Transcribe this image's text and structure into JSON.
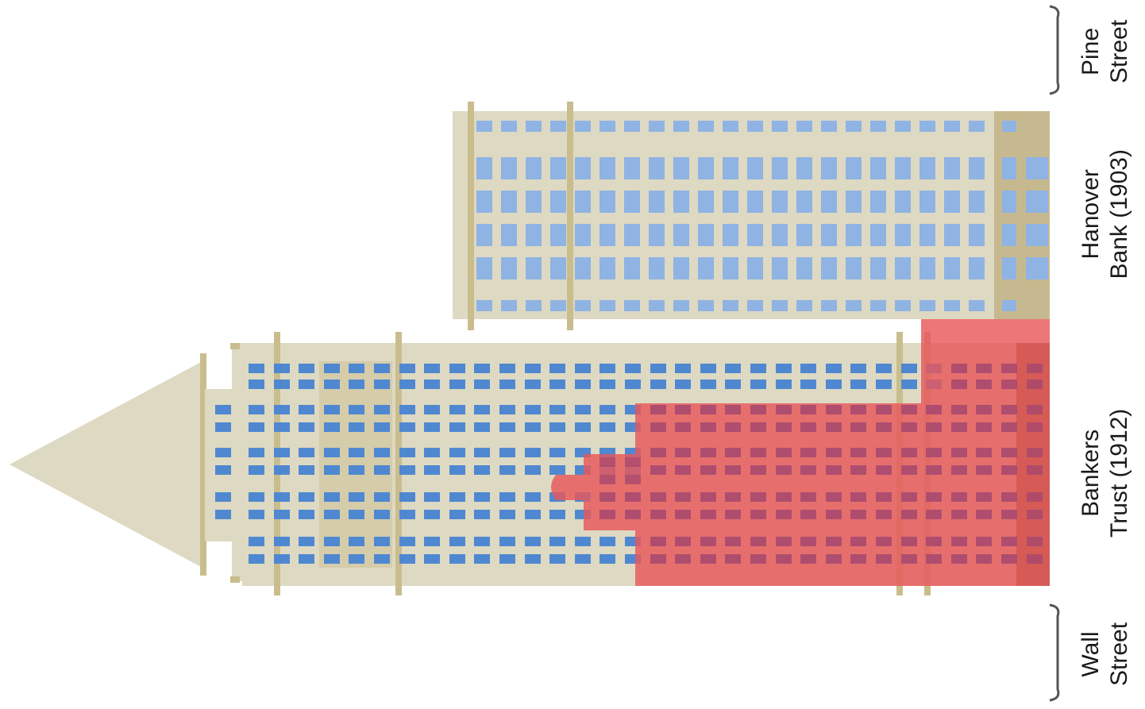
{
  "streets": [
    {
      "id": "pine",
      "line1": "Pine",
      "line2": "Street"
    },
    {
      "id": "wall",
      "line1": "Wall",
      "line2": "Street"
    }
  ],
  "buildings": [
    {
      "id": "hanover",
      "line1": "Hanover",
      "line2": "Bank (1903)"
    },
    {
      "id": "bankers",
      "line1": "Bankers",
      "line2": "Trust (1912)"
    }
  ],
  "colors": {
    "facade": "#ded9c2",
    "column": "#c9bd8e",
    "hanover_base": "#c7b98f",
    "window": "#8fb3e3",
    "window_dark": "#4f88d0",
    "highlight": "#e8585a",
    "highlight_window": "#a8486e",
    "bracket": "#555555"
  }
}
